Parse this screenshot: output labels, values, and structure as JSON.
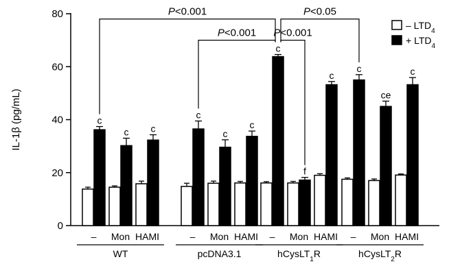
{
  "chart_data": {
    "type": "bar",
    "title": "",
    "xlabel": "",
    "ylabel": "IL-1β (pg/mL)",
    "ylim": [
      0,
      80
    ],
    "yticks": [
      0,
      20,
      40,
      60,
      80
    ],
    "legend_position": "top-right",
    "legend": [
      {
        "label": "– LTD",
        "sub": "4",
        "color": "#ffffff"
      },
      {
        "label": "+ LTD",
        "sub": "4",
        "color": "#000000"
      }
    ],
    "groups": [
      {
        "name": "WT",
        "name_sub": "",
        "name_suffix": "",
        "conditions": [
          {
            "label": "–",
            "minus": 13.8,
            "minus_err": 0.7,
            "plus": 36.2,
            "plus_err": 1.2,
            "letter": "c"
          },
          {
            "label": "Mon",
            "minus": 14.5,
            "minus_err": 0.5,
            "plus": 30.2,
            "plus_err": 2.8,
            "letter": "c"
          },
          {
            "label": "HAMI",
            "minus": 15.8,
            "minus_err": 1.0,
            "plus": 32.3,
            "plus_err": 2.0,
            "letter": "c"
          }
        ]
      },
      {
        "name": "pcDNA3.1",
        "name_sub": "",
        "name_suffix": "",
        "conditions": [
          {
            "label": "–",
            "minus": 14.8,
            "minus_err": 1.2,
            "plus": 36.5,
            "plus_err": 3.0,
            "letter": "c"
          },
          {
            "label": "Mon",
            "minus": 16.0,
            "minus_err": 0.8,
            "plus": 29.6,
            "plus_err": 2.8,
            "letter": "c"
          },
          {
            "label": "HAMI",
            "minus": 16.1,
            "minus_err": 0.6,
            "plus": 33.7,
            "plus_err": 2.0,
            "letter": "c"
          }
        ]
      },
      {
        "name": "hCysLT",
        "name_sub": "1",
        "name_suffix": "R",
        "conditions": [
          {
            "label": "–",
            "minus": 16.1,
            "minus_err": 0.5,
            "plus": 63.8,
            "plus_err": 0.8,
            "letter": "c"
          },
          {
            "label": "Mon",
            "minus": 16.1,
            "minus_err": 0.6,
            "plus": 17.2,
            "plus_err": 1.0,
            "letter": "f"
          },
          {
            "label": "HAMI",
            "minus": 19.0,
            "minus_err": 0.6,
            "plus": 53.2,
            "plus_err": 1.2,
            "letter": "c"
          }
        ]
      },
      {
        "name": "hCysLT",
        "name_sub": "2",
        "name_suffix": "R",
        "conditions": [
          {
            "label": "–",
            "minus": 17.5,
            "minus_err": 0.5,
            "plus": 55.0,
            "plus_err": 2.0,
            "letter": "c"
          },
          {
            "label": "Mon",
            "minus": 17.0,
            "minus_err": 0.6,
            "plus": 45.0,
            "plus_err": 2.0,
            "letter": "ce"
          },
          {
            "label": "HAMI",
            "minus": 19.1,
            "minus_err": 0.4,
            "plus": 53.2,
            "plus_err": 2.7,
            "letter": "c"
          }
        ]
      }
    ],
    "comparisons": [
      {
        "label": "P<0.001",
        "from": [
          0,
          0
        ],
        "to": [
          2,
          0
        ],
        "level": 78
      },
      {
        "label": "P<0.05",
        "from": [
          2,
          0
        ],
        "to": [
          3,
          0
        ],
        "level": 78
      },
      {
        "label": "P<0.001",
        "from": [
          1,
          0
        ],
        "to": [
          2,
          0
        ],
        "level": 70
      },
      {
        "label": "P<0.001",
        "from": [
          2,
          0
        ],
        "to": [
          2,
          1
        ],
        "level": 70
      }
    ]
  }
}
